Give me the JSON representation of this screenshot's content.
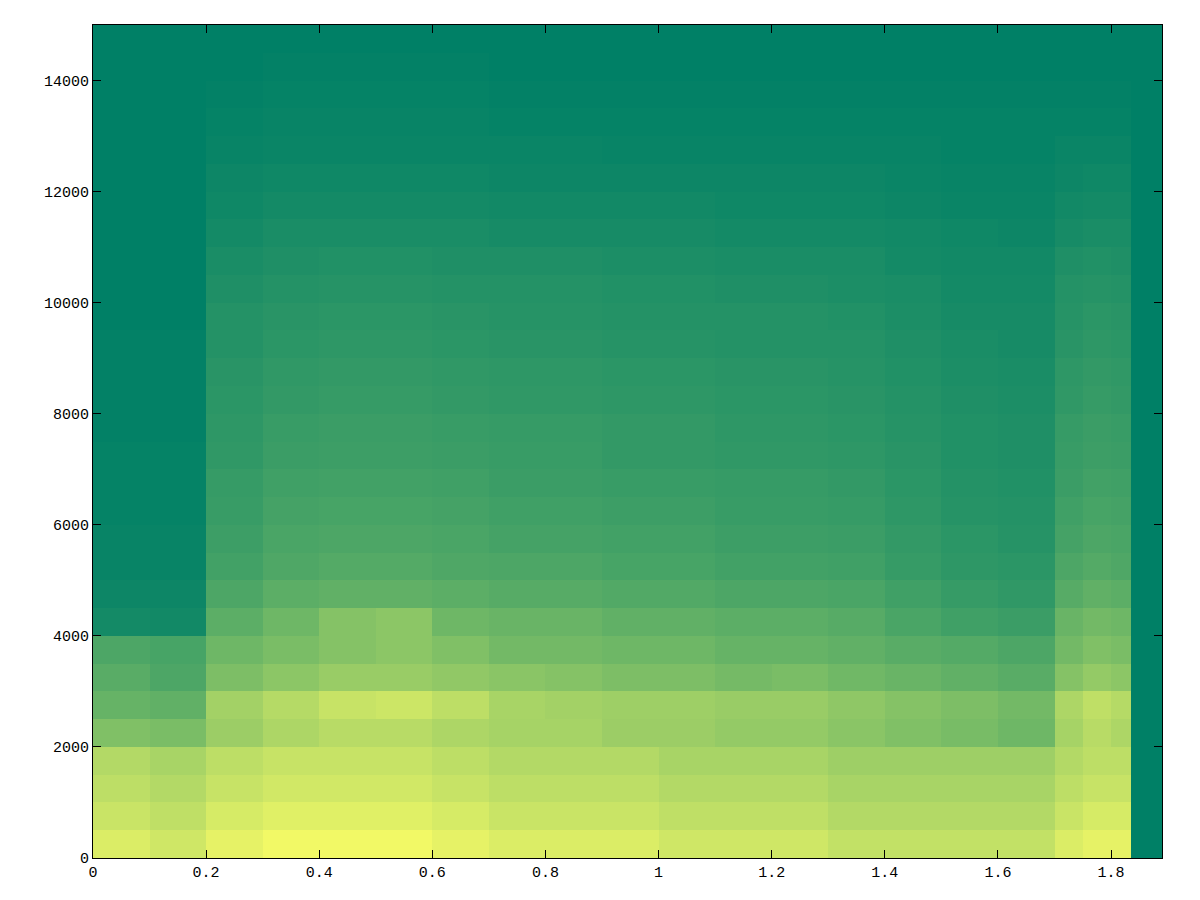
{
  "chart_data": {
    "type": "heatmap",
    "xlim": [
      0,
      1.89
    ],
    "xticks": [
      0,
      0.2,
      0.4,
      0.6,
      0.8,
      1,
      1.2,
      1.4,
      1.6,
      1.8
    ],
    "ylim": [
      0,
      15000
    ],
    "yticks": [
      0,
      2000,
      4000,
      6000,
      8000,
      10000,
      12000,
      14000
    ],
    "grid": false,
    "colors": [
      "#008066",
      "#ffff66"
    ],
    "zlim": [
      0,
      1
    ],
    "x_edges": [
      0,
      0.1,
      0.2,
      0.3,
      0.4,
      0.5,
      0.6,
      0.7,
      0.8,
      0.9,
      1,
      1.1,
      1.2,
      1.3,
      1.4,
      1.5,
      1.6,
      1.7,
      1.75,
      1.8,
      1.835
    ],
    "y_edges": [
      0,
      500,
      1000,
      1500,
      2000,
      2500,
      3000,
      3500,
      4000,
      4500,
      5000,
      5500,
      6000,
      6500,
      7000,
      7500,
      8000,
      8500,
      9000,
      9500,
      10000,
      10500,
      11000,
      11500,
      12000,
      12500,
      13000,
      13500,
      14000,
      14500,
      15000
    ],
    "z": [
      [
        0.86,
        0.81,
        0.9,
        0.95,
        0.95,
        0.95,
        0.9,
        0.86,
        0.86,
        0.86,
        0.81,
        0.81,
        0.81,
        0.76,
        0.76,
        0.76,
        0.76,
        0.86,
        0.9,
        0.9
      ],
      [
        0.79,
        0.75,
        0.84,
        0.88,
        0.88,
        0.88,
        0.84,
        0.79,
        0.79,
        0.79,
        0.75,
        0.75,
        0.75,
        0.7,
        0.7,
        0.7,
        0.7,
        0.79,
        0.84,
        0.84
      ],
      [
        0.74,
        0.7,
        0.78,
        0.82,
        0.82,
        0.82,
        0.78,
        0.74,
        0.74,
        0.74,
        0.7,
        0.7,
        0.7,
        0.66,
        0.66,
        0.66,
        0.66,
        0.74,
        0.78,
        0.78
      ],
      [
        0.7,
        0.66,
        0.74,
        0.78,
        0.78,
        0.78,
        0.74,
        0.7,
        0.7,
        0.7,
        0.66,
        0.66,
        0.66,
        0.62,
        0.62,
        0.62,
        0.62,
        0.7,
        0.74,
        0.74
      ],
      [
        0.5,
        0.48,
        0.61,
        0.68,
        0.72,
        0.72,
        0.68,
        0.65,
        0.65,
        0.61,
        0.61,
        0.58,
        0.58,
        0.54,
        0.5,
        0.47,
        0.43,
        0.65,
        0.72,
        0.68
      ],
      [
        0.4,
        0.38,
        0.64,
        0.71,
        0.78,
        0.8,
        0.74,
        0.66,
        0.64,
        0.62,
        0.62,
        0.6,
        0.6,
        0.56,
        0.52,
        0.49,
        0.45,
        0.68,
        0.75,
        0.71
      ],
      [
        0.35,
        0.3,
        0.49,
        0.55,
        0.6,
        0.6,
        0.57,
        0.54,
        0.52,
        0.49,
        0.49,
        0.46,
        0.48,
        0.44,
        0.41,
        0.38,
        0.35,
        0.52,
        0.58,
        0.55
      ],
      [
        0.3,
        0.28,
        0.43,
        0.48,
        0.52,
        0.55,
        0.5,
        0.45,
        0.45,
        0.43,
        0.43,
        0.4,
        0.4,
        0.38,
        0.35,
        0.33,
        0.3,
        0.45,
        0.5,
        0.48
      ],
      [
        0.08,
        0.07,
        0.36,
        0.43,
        0.52,
        0.55,
        0.43,
        0.41,
        0.41,
        0.38,
        0.38,
        0.36,
        0.36,
        0.34,
        0.29,
        0.25,
        0.23,
        0.41,
        0.45,
        0.43
      ],
      [
        0.05,
        0.05,
        0.3,
        0.36,
        0.38,
        0.38,
        0.36,
        0.34,
        0.34,
        0.32,
        0.32,
        0.3,
        0.3,
        0.29,
        0.25,
        0.21,
        0.19,
        0.34,
        0.38,
        0.36
      ],
      [
        0.03,
        0.03,
        0.26,
        0.31,
        0.33,
        0.33,
        0.31,
        0.3,
        0.3,
        0.28,
        0.28,
        0.26,
        0.26,
        0.25,
        0.21,
        0.18,
        0.17,
        0.3,
        0.33,
        0.31
      ],
      [
        0.03,
        0.03,
        0.24,
        0.29,
        0.3,
        0.3,
        0.29,
        0.27,
        0.27,
        0.26,
        0.26,
        0.24,
        0.24,
        0.23,
        0.2,
        0.17,
        0.15,
        0.27,
        0.3,
        0.29
      ],
      [
        0.02,
        0.02,
        0.22,
        0.27,
        0.28,
        0.28,
        0.27,
        0.25,
        0.25,
        0.24,
        0.24,
        0.22,
        0.22,
        0.21,
        0.18,
        0.15,
        0.14,
        0.25,
        0.28,
        0.27
      ],
      [
        0.02,
        0.02,
        0.21,
        0.25,
        0.26,
        0.26,
        0.25,
        0.23,
        0.23,
        0.22,
        0.22,
        0.21,
        0.21,
        0.2,
        0.17,
        0.14,
        0.13,
        0.23,
        0.26,
        0.25
      ],
      [
        0.02,
        0.02,
        0.19,
        0.23,
        0.24,
        0.24,
        0.23,
        0.22,
        0.22,
        0.2,
        0.2,
        0.19,
        0.19,
        0.18,
        0.16,
        0.13,
        0.12,
        0.22,
        0.24,
        0.23
      ],
      [
        0.01,
        0.01,
        0.18,
        0.22,
        0.23,
        0.23,
        0.22,
        0.21,
        0.21,
        0.2,
        0.2,
        0.18,
        0.18,
        0.17,
        0.15,
        0.13,
        0.12,
        0.21,
        0.23,
        0.22
      ],
      [
        0.01,
        0.01,
        0.17,
        0.2,
        0.21,
        0.21,
        0.2,
        0.19,
        0.19,
        0.18,
        0.18,
        0.17,
        0.17,
        0.16,
        0.14,
        0.12,
        0.11,
        0.19,
        0.21,
        0.2
      ],
      [
        0.01,
        0.01,
        0.16,
        0.19,
        0.2,
        0.2,
        0.19,
        0.18,
        0.18,
        0.17,
        0.17,
        0.16,
        0.16,
        0.15,
        0.13,
        0.11,
        0.1,
        0.18,
        0.2,
        0.19
      ],
      [
        0.01,
        0.01,
        0.14,
        0.17,
        0.18,
        0.18,
        0.17,
        0.16,
        0.16,
        0.15,
        0.15,
        0.14,
        0.14,
        0.14,
        0.12,
        0.1,
        0.09,
        0.16,
        0.18,
        0.17
      ],
      [
        0.0,
        0.0,
        0.14,
        0.16,
        0.17,
        0.17,
        0.16,
        0.15,
        0.15,
        0.14,
        0.14,
        0.14,
        0.14,
        0.13,
        0.11,
        0.09,
        0.09,
        0.15,
        0.17,
        0.16
      ],
      [
        0.0,
        0.0,
        0.12,
        0.14,
        0.15,
        0.15,
        0.14,
        0.14,
        0.14,
        0.13,
        0.13,
        0.12,
        0.12,
        0.11,
        0.1,
        0.08,
        0.08,
        0.14,
        0.15,
        0.14
      ],
      [
        0.0,
        0.0,
        0.1,
        0.12,
        0.13,
        0.13,
        0.12,
        0.12,
        0.12,
        0.11,
        0.11,
        0.1,
        0.1,
        0.1,
        0.08,
        0.07,
        0.07,
        0.12,
        0.13,
        0.12
      ],
      [
        0.0,
        0.0,
        0.08,
        0.1,
        0.1,
        0.1,
        0.1,
        0.09,
        0.09,
        0.09,
        0.09,
        0.08,
        0.08,
        0.08,
        0.07,
        0.06,
        0.05,
        0.09,
        0.1,
        0.1
      ],
      [
        0.0,
        0.0,
        0.06,
        0.08,
        0.08,
        0.08,
        0.08,
        0.07,
        0.07,
        0.07,
        0.07,
        0.06,
        0.06,
        0.06,
        0.05,
        0.04,
        0.04,
        0.07,
        0.08,
        0.08
      ],
      [
        0.0,
        0.0,
        0.05,
        0.06,
        0.06,
        0.06,
        0.06,
        0.05,
        0.05,
        0.05,
        0.05,
        0.05,
        0.05,
        0.05,
        0.04,
        0.03,
        0.03,
        0.05,
        0.06,
        0.06
      ],
      [
        0.0,
        0.0,
        0.03,
        0.04,
        0.04,
        0.04,
        0.04,
        0.04,
        0.04,
        0.03,
        0.03,
        0.03,
        0.03,
        0.03,
        0.03,
        0.02,
        0.02,
        0.04,
        0.04,
        0.04
      ],
      [
        0.0,
        0.0,
        0.02,
        0.03,
        0.03,
        0.03,
        0.03,
        0.02,
        0.02,
        0.02,
        0.02,
        0.02,
        0.02,
        0.02,
        0.02,
        0.02,
        0.02,
        0.02,
        0.02,
        0.02
      ],
      [
        0.0,
        0.0,
        0.01,
        0.02,
        0.02,
        0.02,
        0.02,
        0.01,
        0.01,
        0.01,
        0.01,
        0.01,
        0.01,
        0.01,
        0.01,
        0.01,
        0.01,
        0.01,
        0.01,
        0.01
      ],
      [
        0.0,
        0.0,
        0.0,
        0.01,
        0.01,
        0.01,
        0.01,
        0.0,
        0.0,
        0.0,
        0.0,
        0.0,
        0.0,
        0.0,
        0.0,
        0.0,
        0.0,
        0.0,
        0.0,
        0.0
      ],
      [
        0.0,
        0.0,
        0.0,
        0.0,
        0.0,
        0.0,
        0.0,
        0.0,
        0.0,
        0.0,
        0.0,
        0.0,
        0.0,
        0.0,
        0.0,
        0.0,
        0.0,
        0.0,
        0.0,
        0.0
      ]
    ]
  }
}
